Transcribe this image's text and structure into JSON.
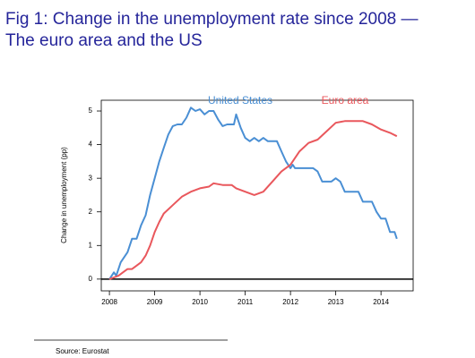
{
  "chart_data": {
    "type": "line",
    "title": [
      "Fig 1: Change in the unemployment rate since 2008 —",
      "The euro area and the US"
    ],
    "y_label": "Change in unemployment (pp)",
    "source": "Source:  Eurostat",
    "xlim": [
      2007.82,
      2014.71
    ],
    "ylim": [
      -0.35,
      5.32
    ],
    "xticks": [
      2008,
      2009,
      2010,
      2011,
      2012,
      2013,
      2014
    ],
    "yticks": [
      0,
      1,
      2,
      3,
      4,
      5
    ],
    "series": [
      {
        "name": "United States",
        "color": "#4a8fd4",
        "x": [
          2008.0,
          2008.1,
          2008.15,
          2008.25,
          2008.4,
          2008.5,
          2008.6,
          2008.7,
          2008.8,
          2008.9,
          2009.0,
          2009.1,
          2009.2,
          2009.3,
          2009.4,
          2009.5,
          2009.6,
          2009.7,
          2009.8,
          2009.9,
          2010.0,
          2010.1,
          2010.2,
          2010.3,
          2010.4,
          2010.5,
          2010.6,
          2010.75,
          2010.8,
          2010.9,
          2011.0,
          2011.1,
          2011.2,
          2011.3,
          2011.4,
          2011.5,
          2011.7,
          2011.8,
          2011.9,
          2012.0,
          2012.05,
          2012.1,
          2012.5,
          2012.6,
          2012.7,
          2012.9,
          2013.0,
          2013.1,
          2013.2,
          2013.5,
          2013.6,
          2013.8,
          2013.9,
          2014.0,
          2014.1,
          2014.2,
          2014.3,
          2014.35
        ],
        "values": [
          0,
          0.2,
          0.1,
          0.5,
          0.8,
          1.2,
          1.2,
          1.6,
          1.9,
          2.5,
          3.0,
          3.5,
          3.9,
          4.3,
          4.55,
          4.6,
          4.6,
          4.8,
          5.1,
          5.0,
          5.05,
          4.9,
          5.0,
          5.0,
          4.75,
          4.55,
          4.6,
          4.6,
          4.9,
          4.5,
          4.2,
          4.1,
          4.2,
          4.1,
          4.2,
          4.1,
          4.1,
          3.8,
          3.5,
          3.3,
          3.4,
          3.3,
          3.3,
          3.2,
          2.9,
          2.9,
          3.0,
          2.9,
          2.6,
          2.6,
          2.3,
          2.3,
          2.0,
          1.8,
          1.8,
          1.4,
          1.4,
          1.2
        ]
      },
      {
        "name": "Euro area",
        "color": "#e9575c",
        "x": [
          2008.0,
          2008.1,
          2008.2,
          2008.3,
          2008.4,
          2008.5,
          2008.6,
          2008.7,
          2008.8,
          2008.9,
          2009.0,
          2009.1,
          2009.2,
          2009.4,
          2009.6,
          2009.8,
          2010.0,
          2010.2,
          2010.3,
          2010.5,
          2010.7,
          2010.8,
          2011.0,
          2011.2,
          2011.4,
          2011.6,
          2011.8,
          2012.0,
          2012.2,
          2012.4,
          2012.6,
          2012.8,
          2013.0,
          2013.2,
          2013.4,
          2013.6,
          2013.8,
          2014.0,
          2014.2,
          2014.35
        ],
        "values": [
          0,
          0.05,
          0.1,
          0.2,
          0.3,
          0.3,
          0.4,
          0.5,
          0.7,
          1.0,
          1.4,
          1.7,
          1.95,
          2.2,
          2.45,
          2.6,
          2.7,
          2.75,
          2.85,
          2.8,
          2.8,
          2.7,
          2.6,
          2.5,
          2.6,
          2.9,
          3.2,
          3.4,
          3.8,
          4.05,
          4.15,
          4.4,
          4.65,
          4.7,
          4.7,
          4.7,
          4.6,
          4.45,
          4.35,
          4.25
        ]
      }
    ]
  }
}
